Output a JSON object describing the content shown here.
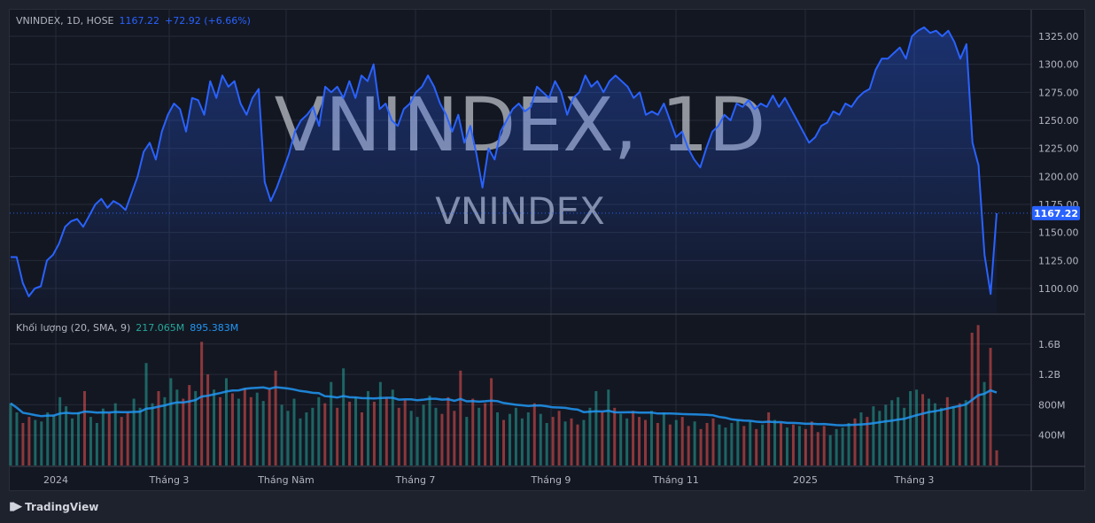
{
  "legend": {
    "symbol": "VNINDEX, 1D, HOSE",
    "last": "1167.22",
    "change": "+72.92 (+6.66%)"
  },
  "volume_legend": {
    "label": "Khối lượng (20, SMA, 9)",
    "volume": "217.065M",
    "sma": "895.383M"
  },
  "watermark": {
    "title": "VNINDEX, 1D",
    "subtitle": "VNINDEX"
  },
  "footer": {
    "brand": "TradingView"
  },
  "colors": {
    "line": "#2962ff",
    "up": "#26a69a",
    "down": "#ef5350",
    "sma": "#2196f3",
    "bg": "#131722"
  },
  "chart_data": [
    {
      "type": "area",
      "title": "VNINDEX, 1D, HOSE",
      "ylim": [
        1080,
        1340
      ],
      "yticks": [
        1100,
        1125,
        1150,
        1175,
        1200,
        1225,
        1250,
        1275,
        1300,
        1325
      ],
      "ytick_labels": [
        "1100.00",
        "1125.00",
        "1150.00",
        "1175.00",
        "1200.00",
        "1225.00",
        "1250.00",
        "1275.00",
        "1300.00",
        "1325.00"
      ],
      "last_value_label": "1167.22",
      "xtick_labels": [
        "2024",
        "Tháng 3",
        "Tháng Năm",
        "Tháng 7",
        "Tháng 9",
        "Tháng 11",
        "2025",
        "Tháng 3"
      ],
      "values": [
        1128,
        1128,
        1105,
        1093,
        1100,
        1102,
        1125,
        1130,
        1140,
        1155,
        1160,
        1162,
        1155,
        1165,
        1175,
        1180,
        1172,
        1178,
        1175,
        1170,
        1185,
        1200,
        1222,
        1230,
        1215,
        1240,
        1255,
        1265,
        1260,
        1240,
        1270,
        1268,
        1255,
        1285,
        1270,
        1290,
        1280,
        1285,
        1265,
        1255,
        1270,
        1278,
        1195,
        1178,
        1190,
        1205,
        1220,
        1240,
        1250,
        1255,
        1262,
        1245,
        1280,
        1275,
        1280,
        1270,
        1285,
        1270,
        1290,
        1285,
        1300,
        1260,
        1265,
        1250,
        1245,
        1260,
        1265,
        1275,
        1280,
        1290,
        1280,
        1265,
        1255,
        1240,
        1255,
        1230,
        1245,
        1220,
        1190,
        1225,
        1215,
        1240,
        1250,
        1260,
        1265,
        1258,
        1262,
        1280,
        1275,
        1270,
        1285,
        1275,
        1255,
        1270,
        1275,
        1290,
        1280,
        1285,
        1275,
        1285,
        1290,
        1285,
        1280,
        1270,
        1275,
        1255,
        1258,
        1255,
        1265,
        1250,
        1235,
        1240,
        1225,
        1215,
        1208,
        1225,
        1240,
        1245,
        1255,
        1250,
        1265,
        1262,
        1268,
        1260,
        1265,
        1262,
        1272,
        1262,
        1270,
        1260,
        1250,
        1240,
        1230,
        1235,
        1245,
        1248,
        1258,
        1255,
        1265,
        1262,
        1270,
        1275,
        1278,
        1295,
        1305,
        1305,
        1310,
        1315,
        1305,
        1325,
        1330,
        1333,
        1328,
        1330,
        1325,
        1330,
        1320,
        1305,
        1318,
        1230,
        1210,
        1130,
        1095,
        1167.22
      ]
    },
    {
      "type": "bar",
      "title": "Khối lượng (20, SMA, 9)",
      "ylim": [
        0,
        1900
      ],
      "yticks": [
        400,
        800,
        1200,
        1600
      ],
      "ytick_labels": [
        "400M",
        "800M",
        "1.2B",
        "1.6B"
      ],
      "unit": "M",
      "values": [
        820,
        700,
        560,
        640,
        600,
        580,
        700,
        660,
        900,
        780,
        620,
        700,
        980,
        640,
        560,
        750,
        690,
        820,
        640,
        700,
        880,
        760,
        1350,
        820,
        980,
        900,
        1150,
        1000,
        880,
        1060,
        980,
        1630,
        1200,
        1000,
        900,
        1150,
        950,
        880,
        1020,
        900,
        960,
        850,
        1000,
        1250,
        800,
        720,
        880,
        620,
        700,
        760,
        900,
        820,
        1100,
        760,
        1280,
        840,
        900,
        700,
        980,
        840,
        1100,
        900,
        1000,
        760,
        860,
        720,
        640,
        800,
        920,
        760,
        680,
        900,
        720,
        1250,
        640,
        880,
        760,
        820,
        1150,
        700,
        600,
        680,
        760,
        620,
        700,
        820,
        680,
        560,
        640,
        720,
        580,
        620,
        540,
        600,
        760,
        980,
        700,
        1000,
        760,
        680,
        620,
        720,
        640,
        600,
        720,
        560,
        700,
        540,
        600,
        640,
        520,
        580,
        480,
        560,
        620,
        540,
        500,
        560,
        600,
        520,
        580,
        480,
        540,
        700,
        600,
        560,
        500,
        540,
        520,
        480,
        580,
        440,
        520,
        400,
        480,
        500,
        560,
        620,
        700,
        640,
        780,
        720,
        800,
        860,
        900,
        760,
        980,
        1000,
        940,
        880,
        820,
        760,
        900,
        780,
        820,
        860,
        1750,
        1850,
        1100,
        1550,
        200
      ]
    }
  ]
}
